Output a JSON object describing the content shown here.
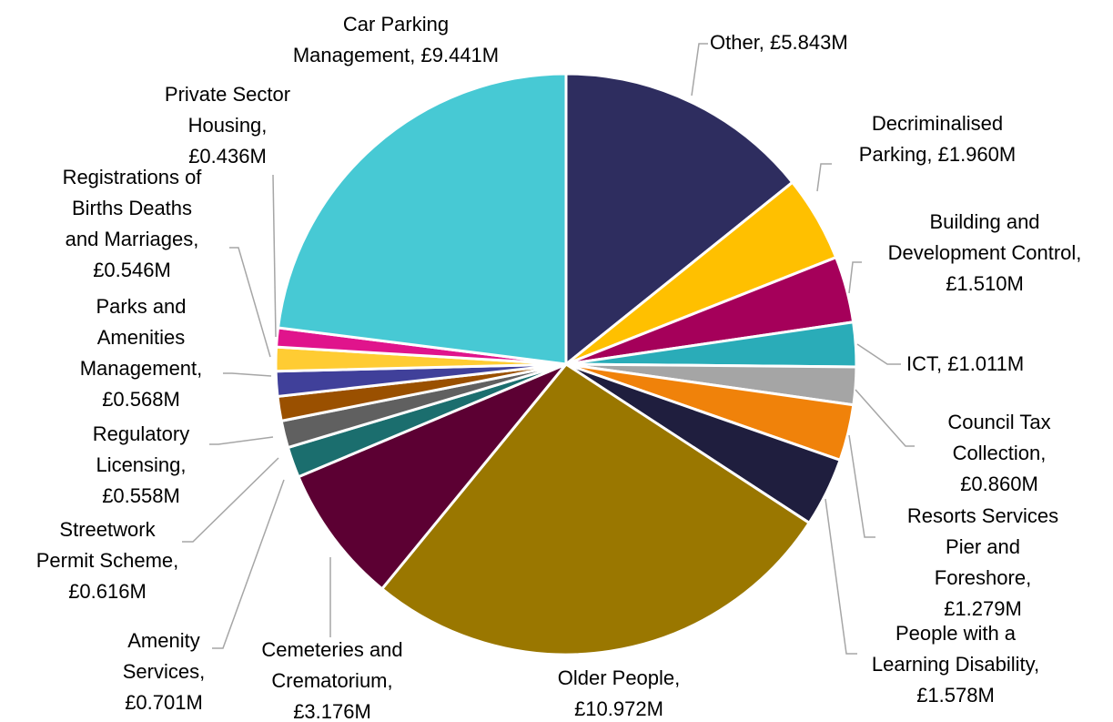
{
  "chart_data": {
    "type": "pie",
    "values": [
      5.843,
      1.96,
      1.51,
      1.011,
      0.86,
      1.279,
      1.578,
      10.972,
      3.176,
      0.701,
      0.616,
      0.558,
      0.568,
      0.546,
      0.436,
      9.441
    ],
    "value_labels": [
      "Other, £5.843M",
      "Decriminalised\nParking, £1.960M",
      "Building and\nDevelopment Control,\n£1.510M",
      "ICT, £1.011M",
      "Council Tax\nCollection,\n£0.860M",
      "Resorts Services\nPier and\nForeshore,\n£1.279M",
      "People with a\nLearning Disability,\n£1.578M",
      "Older People,\n£10.972M",
      "Cemeteries and\nCrematorium,\n£3.176M",
      "Amenity\nServices,\n£0.701M",
      "Streetwork\nPermit Scheme,\n£0.616M",
      "Regulatory\nLicensing,\n£0.558M",
      "Parks and\nAmenities\nManagement,\n£0.568M",
      "Registrations of\nBirths Deaths\nand Marriages,\n£0.546M",
      "Private Sector\nHousing,\n£0.436M",
      "Car Parking\nManagement, £9.441M"
    ],
    "colors": [
      "#2e2d5f",
      "#ffc000",
      "#a5005a",
      "#2aacb8",
      "#a5a5a5",
      "#f0820a",
      "#1f1e3e",
      "#9a7700",
      "#5c0033",
      "#1b6e6e",
      "#606060",
      "#9a5000",
      "#40409a",
      "#ffcc33",
      "#e0148c",
      "#47c9d4"
    ]
  }
}
